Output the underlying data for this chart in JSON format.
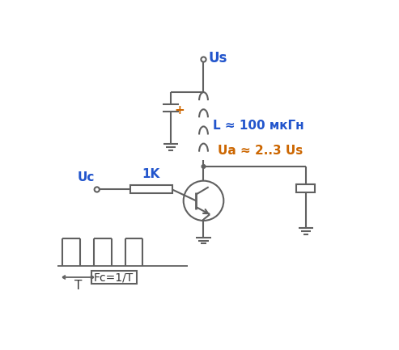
{
  "background_color": "#ffffff",
  "line_color": "#606060",
  "text_color_black": "#333333",
  "text_color_blue": "#2255cc",
  "text_color_orange": "#cc6600",
  "us_label": "Us",
  "l_label": "L ≈ 100 мкГн",
  "ua_label": "Ua ≈ 2..3 Us",
  "uc_label": "Uc",
  "r_label": "1K",
  "fc_label": "Fc=1/T",
  "t_label": "T",
  "plus_label": "+"
}
